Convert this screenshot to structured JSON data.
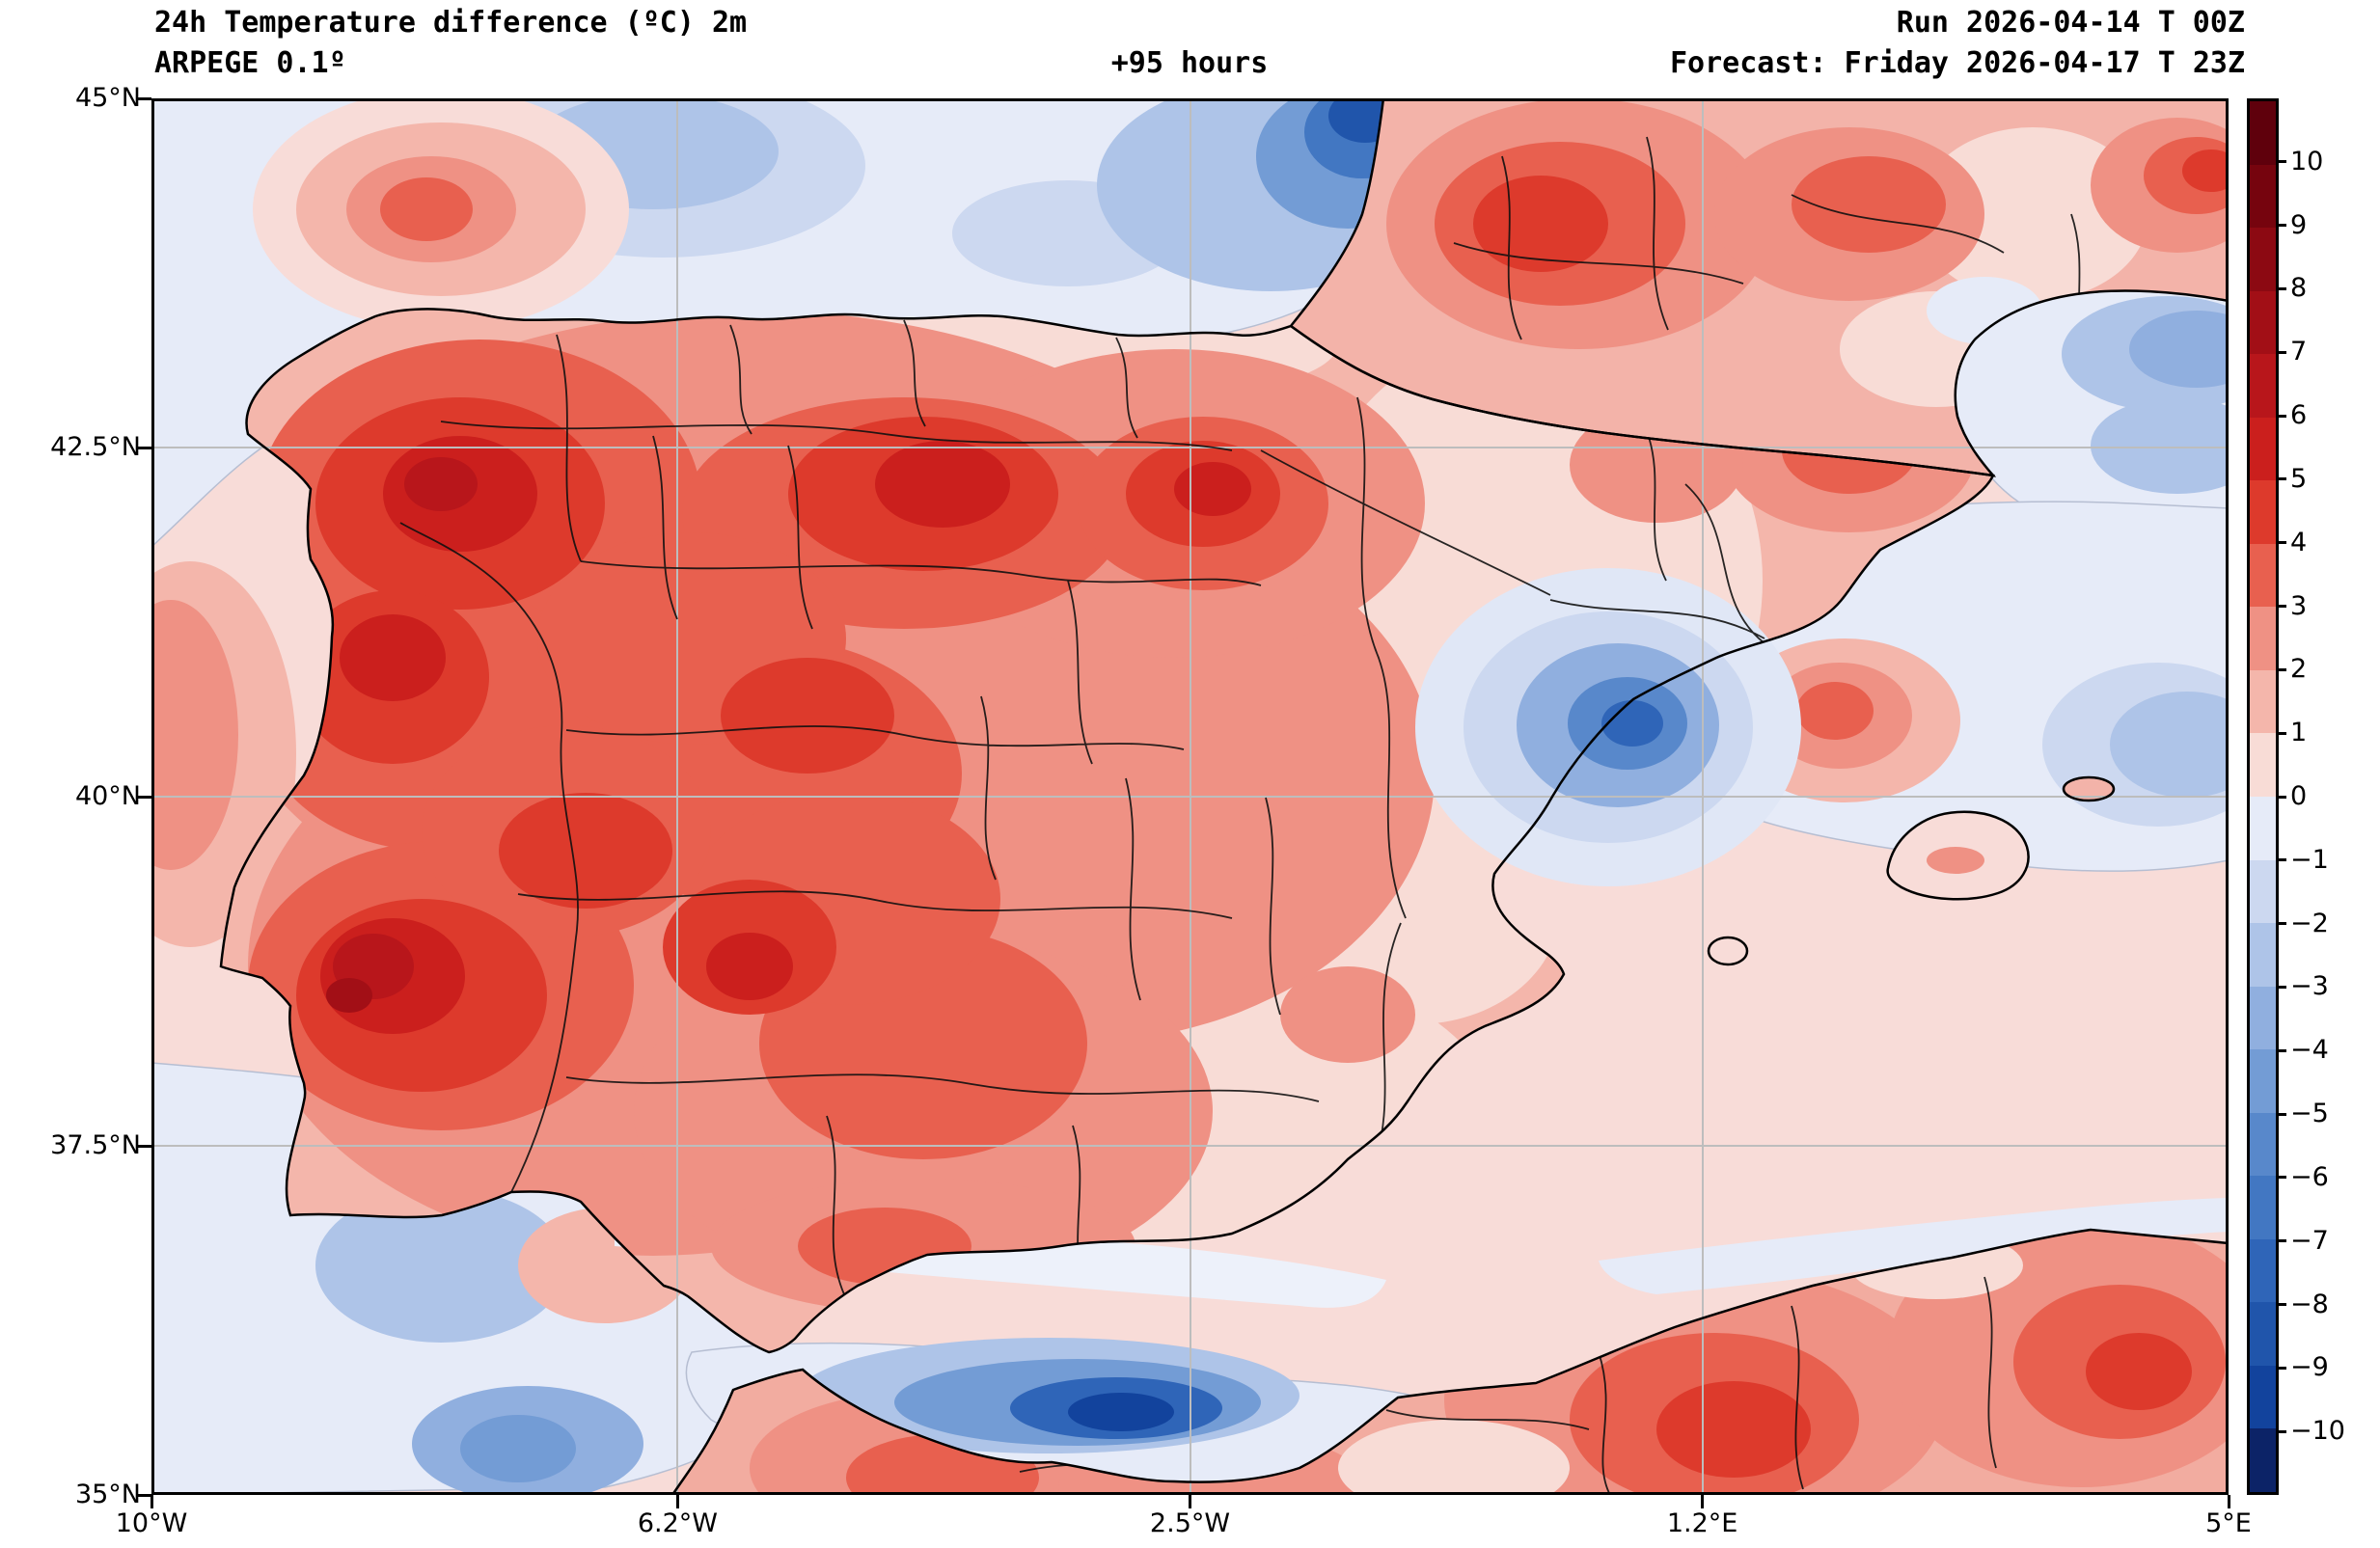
{
  "header": {
    "title": "24h Temperature difference (ºC) 2m",
    "model": "ARPEGE 0.1º",
    "lead": "+95 hours",
    "run": "Run 2026-04-14 T 00Z",
    "forecast": "Forecast: Friday 2026-04-17 T 23Z"
  },
  "chart_data": {
    "type": "heatmap",
    "title": "24h Temperature difference (ºC) 2m",
    "model": "ARPEGE 0.1º",
    "lead": "+95 hours",
    "run": "Run 2026-04-14 T 00Z",
    "forecast": "Forecast: Friday 2026-04-17 T 23Z",
    "x_axis": {
      "range_lon": [
        -10,
        5
      ],
      "ticks": [
        {
          "label": "10°W",
          "lon": -10
        },
        {
          "label": "6.2°W",
          "lon": -6.2
        },
        {
          "label": "2.5°W",
          "lon": -2.5
        },
        {
          "label": "1.2°E",
          "lon": 1.2
        },
        {
          "label": "5°E",
          "lon": 5
        }
      ]
    },
    "y_axis": {
      "range_lat": [
        35,
        45
      ],
      "ticks": [
        {
          "label": "45°N",
          "lat": 45
        },
        {
          "label": "42.5°N",
          "lat": 42.5
        },
        {
          "label": "40°N",
          "lat": 40
        },
        {
          "label": "37.5°N",
          "lat": 37.5
        },
        {
          "label": "35°N",
          "lat": 35
        }
      ]
    },
    "colorbar": {
      "unit": "ºC",
      "tick_labels_top_to_bottom": [
        "10",
        "9",
        "8",
        "7",
        "6",
        "5",
        "4",
        "3",
        "2",
        "1",
        "0",
        "−1",
        "−2",
        "−3",
        "−4",
        "−5",
        "−6",
        "−7",
        "−8",
        "−9",
        "−10"
      ],
      "segment_colors_top_to_bottom": [
        "#5f000c",
        "#76040e",
        "#8c0912",
        "#a20f16",
        "#b8161b",
        "#cb1f1d",
        "#dd3a2c",
        "#e8604f",
        "#ef9184",
        "#f4b6ab",
        "#f8dcd6",
        "#e6ebf8",
        "#ccd8f0",
        "#aec4e8",
        "#90afdf",
        "#739cd5",
        "#5888cb",
        "#4277c2",
        "#2f65b8",
        "#2055ab",
        "#12439d",
        "#0c2367"
      ]
    },
    "grid": true,
    "description": "Filled contour map of 24-hour 2 m temperature change over the Iberian Peninsula, southern France, the Balearic Islands and northern Africa. Widespread warming of +1 to +7 ºC covers most of Spain and Portugal, strongest (+4 to +7 ºC) over Galicia, northern Portugal, the northern Meseta (Burgos area) and the Lisbon/Alentejo region. Cooling of −1 to −8 ºC appears over the Bay of Biscay (dark blue core at top centre), the Gulf of Lion, the sea off Valencia/Castellón, the western Mediterranean east of the map and the Alboran Sea near the Strait of Gibraltar. Southern France and coastal Algeria/Morocco also show +2 to +5 ºC warming."
  }
}
